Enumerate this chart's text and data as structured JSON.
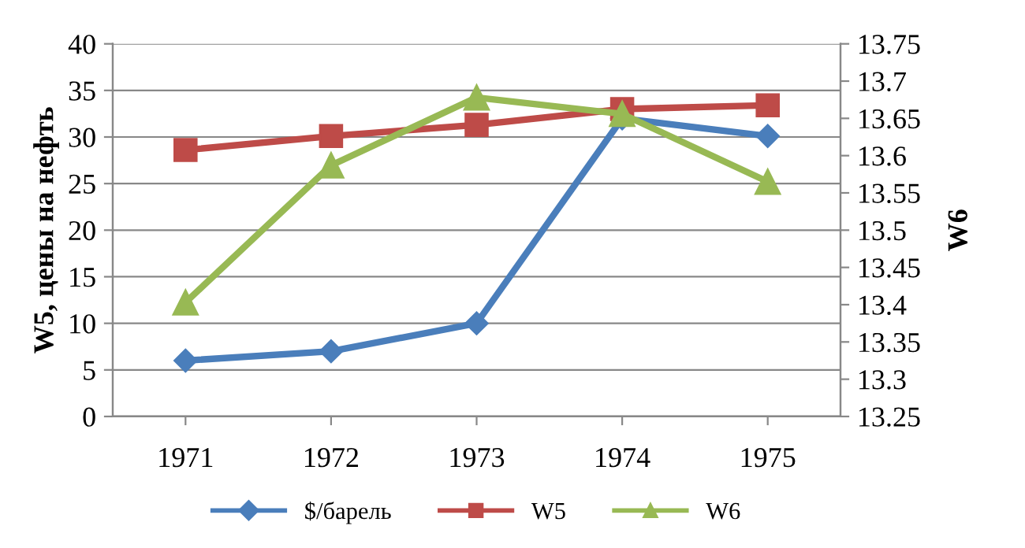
{
  "chart_data": {
    "type": "line",
    "categories": [
      "1971",
      "1972",
      "1973",
      "1974",
      "1975"
    ],
    "ylabel": "W5, цены на нефть",
    "y2label": "W6",
    "ylim": [
      0,
      40
    ],
    "yticks": [
      0,
      5,
      10,
      15,
      20,
      25,
      30,
      35,
      40
    ],
    "y2lim": [
      13.25,
      13.75
    ],
    "y2ticks": [
      13.25,
      {
        "value": 13.3,
        "label": "13.3"
      },
      13.35,
      {
        "value": 13.4,
        "label": "13.4"
      },
      13.45,
      {
        "value": 13.5,
        "label": "13.5"
      },
      13.55,
      {
        "value": 13.6,
        "label": "13.6"
      },
      13.65,
      {
        "value": 13.7,
        "label": "13.7"
      },
      13.75
    ],
    "grid": "y",
    "legend": "bottom",
    "series": [
      {
        "name": "$/барель",
        "color": "#4a7ebb",
        "marker": "diamond",
        "values": [
          6,
          7,
          10,
          32,
          30.1
        ]
      },
      {
        "name": "W5",
        "color": "#be4b48",
        "marker": "square",
        "values": [
          28.6,
          30.1,
          31.3,
          33,
          33.4
        ]
      },
      {
        "name": "W6",
        "color": "#98b954",
        "marker": "triangle",
        "axis": "y2",
        "values": [
          13.403,
          13.587,
          13.678,
          13.656,
          13.565
        ]
      }
    ]
  }
}
